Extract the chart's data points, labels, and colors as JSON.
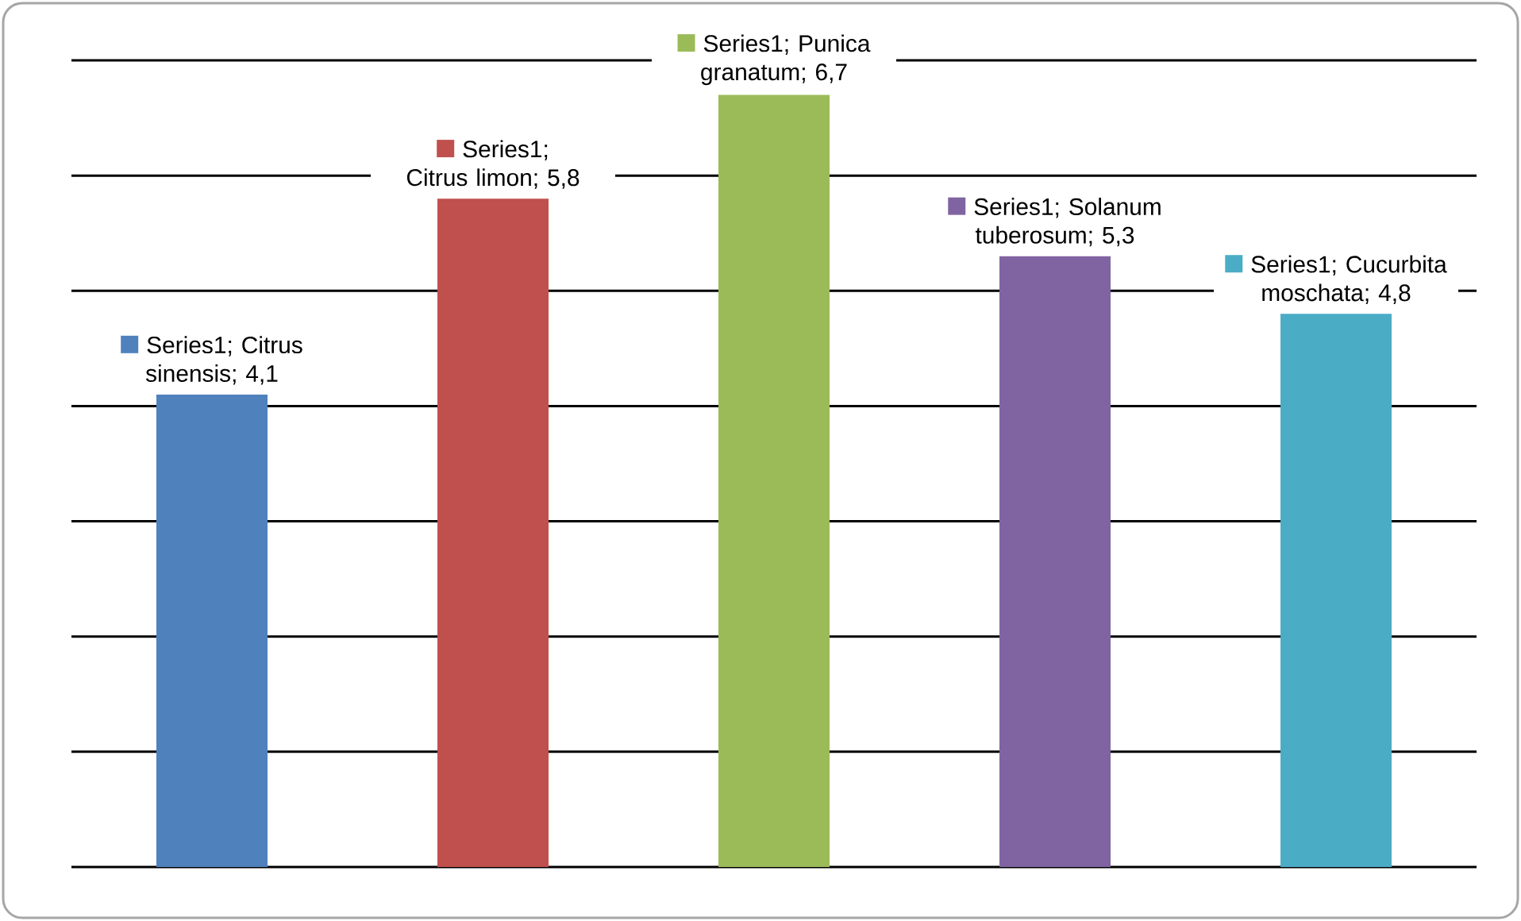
{
  "chart_data": {
    "type": "bar",
    "categories": [
      null,
      null,
      null,
      null,
      null
    ],
    "values": [
      4.1,
      5.8,
      6.7,
      5.3,
      4.8
    ],
    "colors": [
      "#4f81bd",
      "#c0504d",
      "#9bbb59",
      "#8064a2",
      "#4bacc6"
    ],
    "value_labels": [
      "Series1; Citrus sinensis; 4,1",
      "Series1; Citrus limon; 5,8",
      "Series1; Punica granatum; 6,7",
      "Series1; Solanum tuberosum; 5,3",
      "Series1; Cucurbita moschata; 4,8"
    ],
    "ylim": [
      0,
      7
    ],
    "yticks": [
      {
        "value": 0,
        "label": null
      },
      {
        "value": 1,
        "label": null
      },
      {
        "value": 2,
        "label": null
      },
      {
        "value": 3,
        "label": null
      },
      {
        "value": 4,
        "label": null
      },
      {
        "value": 5,
        "label": null
      },
      {
        "value": 6,
        "label": null
      },
      {
        "value": 7,
        "label": null
      }
    ],
    "grid": "y"
  }
}
